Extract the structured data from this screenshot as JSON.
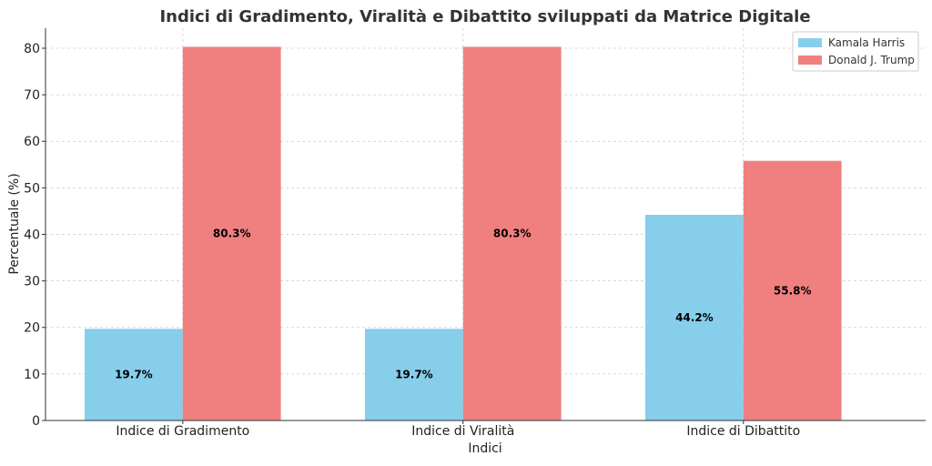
{
  "chart_data": {
    "type": "bar",
    "title": "Indici di Gradimento, Viralità e Dibattito sviluppati da Matrice Digitale",
    "xlabel": "Indici",
    "ylabel": "Percentuale (%)",
    "categories": [
      "Indice di Gradimento",
      "Indice di Viralità",
      "Indice di Dibattito"
    ],
    "series": [
      {
        "name": "Kamala Harris",
        "values": [
          19.7,
          19.7,
          44.2
        ],
        "labels": [
          "19.7%",
          "19.7%",
          "44.2%"
        ],
        "color": "#87CEEB"
      },
      {
        "name": "Donald J. Trump",
        "values": [
          80.3,
          80.3,
          55.8
        ],
        "labels": [
          "80.3%",
          "80.3%",
          "55.8%"
        ],
        "color": "#F08080"
      }
    ],
    "ylim": [
      0,
      84.3
    ],
    "yticks": [
      0,
      10,
      20,
      30,
      40,
      50,
      60,
      70,
      80
    ],
    "ytick_labels": [
      "0",
      "10",
      "20",
      "30",
      "40",
      "50",
      "60",
      "70",
      "80"
    ],
    "grid": true,
    "legend_position": "top-right"
  }
}
